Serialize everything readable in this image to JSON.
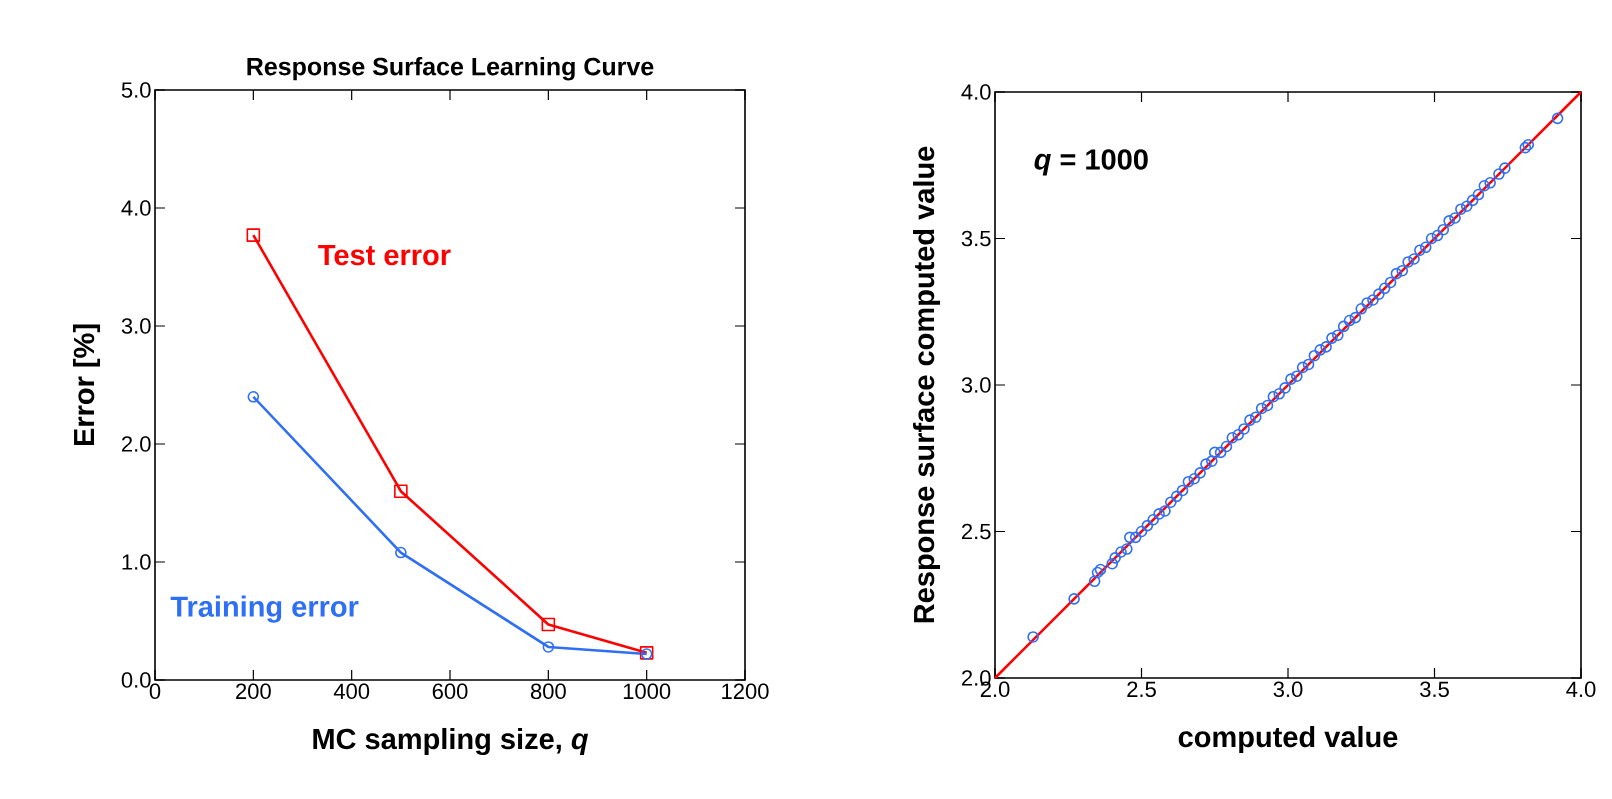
{
  "chart_data": [
    {
      "type": "line",
      "title": "Response Surface Learning Curve",
      "xlabel": "MC sampling size, *q*",
      "ylabel": "Error [%]",
      "xlim": [
        0,
        1200
      ],
      "xticks": [
        0,
        200,
        400,
        600,
        800,
        1000,
        1200
      ],
      "ylim": [
        0,
        5
      ],
      "yticks": [
        {
          "value": 0,
          "label": "0.0"
        },
        {
          "value": 1,
          "label": "1.0"
        },
        {
          "value": 2,
          "label": "2.0"
        },
        {
          "value": 3,
          "label": "3.0"
        },
        {
          "value": 4,
          "label": "4.0"
        },
        {
          "value": 5,
          "label": "5.0"
        }
      ],
      "x": [
        200,
        500,
        800,
        1000
      ],
      "series": [
        {
          "name": "Test error",
          "color": "#ff0000",
          "marker": "square",
          "values": [
            3.77,
            1.6,
            0.47,
            0.23
          ]
        },
        {
          "name": "Training error",
          "color": "#2f6ff5",
          "marker": "circle",
          "values": [
            2.4,
            1.08,
            0.28,
            0.22
          ]
        }
      ]
    },
    {
      "type": "scatter",
      "xlabel": "computed value",
      "ylabel": "Response surface computed value",
      "annotations": [
        "***q* = 1000**"
      ],
      "xlim": [
        2,
        4
      ],
      "xticks": [
        {
          "value": 2,
          "label": "2.0"
        },
        {
          "value": 2.5,
          "label": "2.5"
        },
        {
          "value": 3,
          "label": "3.0"
        },
        {
          "value": 3.5,
          "label": "3.5"
        },
        {
          "value": 4,
          "label": "4.0"
        }
      ],
      "ylim": [
        2,
        4
      ],
      "yticks": [
        {
          "value": 2,
          "label": "2.0"
        },
        {
          "value": 2.5,
          "label": "2.5"
        },
        {
          "value": 3,
          "label": "3.0"
        },
        {
          "value": 3.5,
          "label": "3.5"
        },
        {
          "value": 4,
          "label": "4.0"
        }
      ],
      "series": [
        {
          "type": "line",
          "color": "#ff0000",
          "marker": "none",
          "x": [
            2,
            4
          ],
          "values": [
            2,
            4
          ]
        },
        {
          "type": "scatter",
          "color": "#2f6ff5",
          "marker": "circle",
          "x": [
            2.13,
            2.27,
            2.34,
            2.35,
            2.36,
            2.4,
            2.41,
            2.43,
            2.45,
            2.46,
            2.48,
            2.5,
            2.52,
            2.54,
            2.56,
            2.58,
            2.6,
            2.62,
            2.64,
            2.66,
            2.68,
            2.7,
            2.72,
            2.74,
            2.75,
            2.77,
            2.79,
            2.81,
            2.83,
            2.85,
            2.87,
            2.89,
            2.91,
            2.93,
            2.95,
            2.97,
            2.99,
            3.01,
            3.03,
            3.05,
            3.07,
            3.09,
            3.11,
            3.13,
            3.15,
            3.17,
            3.19,
            3.21,
            3.23,
            3.25,
            3.27,
            3.29,
            3.31,
            3.33,
            3.35,
            3.37,
            3.39,
            3.41,
            3.43,
            3.45,
            3.47,
            3.49,
            3.51,
            3.53,
            3.55,
            3.57,
            3.59,
            3.61,
            3.63,
            3.65,
            3.67,
            3.69,
            3.72,
            3.74,
            3.81,
            3.82,
            3.92
          ],
          "values": [
            2.14,
            2.27,
            2.33,
            2.36,
            2.37,
            2.39,
            2.41,
            2.43,
            2.44,
            2.48,
            2.48,
            2.5,
            2.52,
            2.54,
            2.56,
            2.57,
            2.6,
            2.62,
            2.64,
            2.67,
            2.68,
            2.7,
            2.73,
            2.74,
            2.77,
            2.77,
            2.79,
            2.82,
            2.83,
            2.85,
            2.88,
            2.89,
            2.92,
            2.93,
            2.96,
            2.97,
            2.99,
            3.02,
            3.03,
            3.06,
            3.07,
            3.1,
            3.12,
            3.13,
            3.16,
            3.17,
            3.2,
            3.22,
            3.23,
            3.26,
            3.28,
            3.29,
            3.31,
            3.33,
            3.35,
            3.38,
            3.39,
            3.42,
            3.43,
            3.46,
            3.47,
            3.5,
            3.51,
            3.53,
            3.56,
            3.57,
            3.6,
            3.61,
            3.63,
            3.65,
            3.68,
            3.69,
            3.72,
            3.74,
            3.81,
            3.82,
            3.91
          ]
        }
      ]
    }
  ]
}
